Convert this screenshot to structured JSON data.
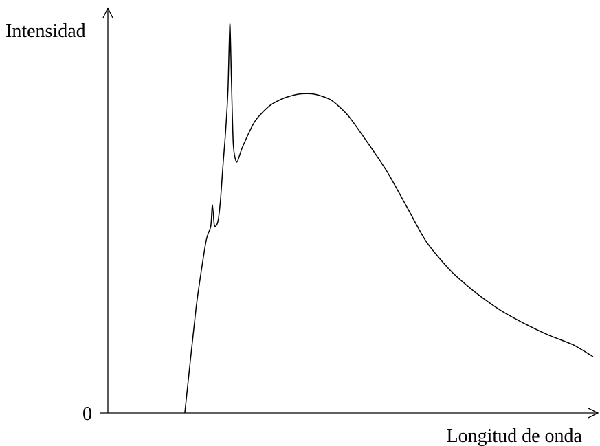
{
  "chart_data": {
    "type": "line",
    "title": "",
    "ylabel": "Intensidad",
    "xlabel": "Longitud de onda",
    "y_tick_labels": [
      "0"
    ],
    "xlim": [
      0,
      100
    ],
    "ylim": [
      0,
      100
    ],
    "grid": false,
    "series": [
      {
        "x": [
          15.7,
          18.0,
          20.0,
          21.0,
          21.3,
          21.7,
          22.0,
          22.5,
          23.0,
          23.5,
          24.0,
          24.5,
          24.9,
          25.2,
          25.6,
          26.3,
          27.5,
          30.0,
          33.0,
          36.0,
          39.0,
          42.0,
          45.5,
          49.0,
          53.0,
          57.0,
          61.0,
          65.0,
          70.0,
          75.0,
          80.0,
          85.0,
          90.0,
          95.0,
          99.0
        ],
        "y": [
          0,
          27.0,
          44.0,
          48.0,
          53.5,
          48.5,
          48.0,
          49.5,
          55.0,
          64.0,
          72.0,
          83.0,
          100.0,
          86.0,
          69.0,
          64.5,
          68.5,
          75.0,
          79.0,
          81.0,
          82.0,
          82.0,
          80.5,
          76.5,
          69.5,
          62.0,
          53.0,
          44.0,
          36.5,
          31.0,
          26.5,
          23.0,
          20.0,
          17.5,
          14.5
        ]
      }
    ]
  }
}
